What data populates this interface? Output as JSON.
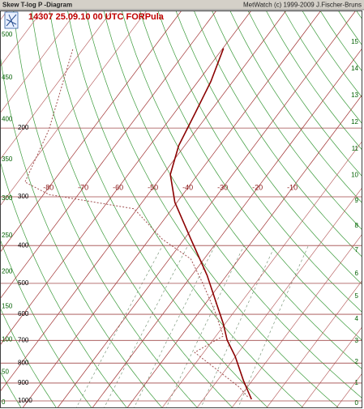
{
  "chart_data": {
    "type": "skewt",
    "window_title": "Skew T-log P -Diagram",
    "credit": "MetWatch  (c) 1999-2009 J.Fischer-Bruns",
    "title": "14307 25.09.10 00 UTC FORPula",
    "ylim": [
      1000,
      100
    ],
    "log_y": true,
    "yticks": [
      1000,
      900,
      800,
      700,
      600,
      500,
      400,
      300,
      200
    ],
    "xlim": [
      -48,
      56
    ],
    "xticks": [
      -80,
      -70,
      -60,
      -50,
      -40,
      -30,
      -20,
      -10
    ],
    "height_km_ticks": [
      0,
      1,
      2,
      3,
      4,
      5,
      6,
      7,
      8,
      9,
      10,
      11,
      12,
      13,
      14,
      15
    ],
    "left_scale_ticks": [
      0,
      50,
      100,
      150,
      200,
      250,
      300,
      350,
      400,
      450,
      500
    ],
    "temperature": {
      "color": "#8b0000",
      "pressure": [
        990,
        887,
        769,
        699,
        635,
        550,
        477,
        385,
        310,
        263,
        222,
        183,
        152,
        125
      ],
      "values": [
        23.8,
        17.5,
        9.9,
        4.1,
        -0.5,
        -8.1,
        -15.6,
        -28.1,
        -40.6,
        -47.9,
        -51.7,
        -54.0,
        -56.3,
        -59.8
      ]
    },
    "dewpoint": {
      "color": "#a05050",
      "pressure": [
        976,
        922,
        751,
        682,
        591,
        500,
        433,
        385,
        322,
        296,
        275,
        202,
        125
      ],
      "values": [
        22.2,
        17.7,
        -2.6,
        2.1,
        -5.5,
        -15.1,
        -23.8,
        -36.3,
        -50.9,
        -78.4,
        -88.0,
        -92.4,
        -103
      ]
    }
  }
}
